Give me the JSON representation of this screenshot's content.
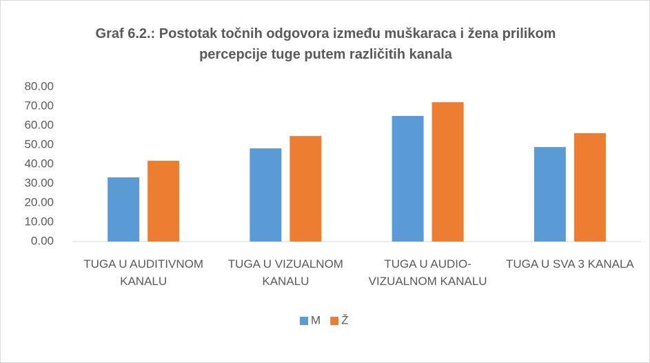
{
  "chart_data": {
    "type": "bar",
    "title": "Graf 6.2.: Postotak točnih odgovora između muškaraca i žena prilikom percepcije tuge putem različitih kanala",
    "categories": [
      "TUGA U AUDITIVNOM KANALU",
      "TUGA U VIZUALNOM KANALU",
      "TUGA U AUDIO-VIZUALNOM KANALU",
      "TUGA U SVA 3 KANALA"
    ],
    "series": [
      {
        "name": "M",
        "color": "#5b9bd5",
        "values": [
          33.2,
          48.2,
          65.0,
          48.9
        ]
      },
      {
        "name": "Ž",
        "color": "#ed7d31",
        "values": [
          41.8,
          54.6,
          72.1,
          56.1
        ]
      }
    ],
    "ylim": [
      0,
      80
    ],
    "yticks": [
      {
        "value": 0,
        "label": "0.00"
      },
      {
        "value": 10,
        "label": "10.00"
      },
      {
        "value": 20,
        "label": "20.00"
      },
      {
        "value": 30,
        "label": "30.00"
      },
      {
        "value": 40,
        "label": "40.00"
      },
      {
        "value": 50,
        "label": "50.00"
      },
      {
        "value": 60,
        "label": "60.00"
      },
      {
        "value": 70,
        "label": "70.00"
      },
      {
        "value": 80,
        "label": "80.00"
      }
    ],
    "grid": false,
    "legend": "bottom"
  }
}
